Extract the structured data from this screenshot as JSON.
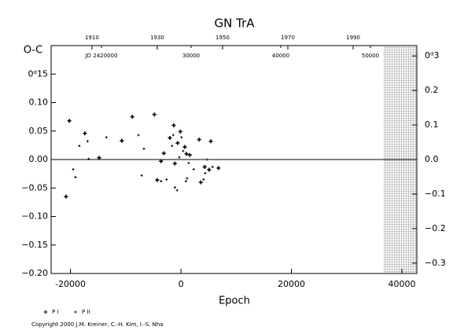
{
  "chart_data": {
    "type": "scatter",
    "title": "GN TrA",
    "x_label": "Epoch",
    "y_label": "O-C",
    "copyright": "Copyright 2000 J.M. Kreiner, C.-H. Kim, I.-S. Nha",
    "xlim": [
      -23500,
      42700
    ],
    "xticks": [
      -20000,
      0,
      20000,
      40000
    ],
    "ylim": [
      -0.2,
      0.2
    ],
    "yticks": [
      {
        "value": -0.2,
        "label": "−0.20"
      },
      {
        "value": -0.15,
        "label": "−0.15"
      },
      {
        "value": -0.1,
        "label": "−0.10"
      },
      {
        "value": -0.05,
        "label": "−0.05"
      },
      {
        "value": 0,
        "label": "0.00"
      },
      {
        "value": 0.05,
        "label": "0.05"
      },
      {
        "value": 0.1,
        "label": "0.10"
      },
      {
        "value": 0.15,
        "label": "0ᵈ15"
      }
    ],
    "y2lim": [
      -0.33,
      0.33
    ],
    "y2ticks": [
      {
        "value": -0.3,
        "label": "−0.3"
      },
      {
        "value": -0.2,
        "label": "−0.2"
      },
      {
        "value": -0.1,
        "label": "−0.1"
      },
      {
        "value": 0,
        "label": "0.0"
      },
      {
        "value": 0.1,
        "label": "0.1"
      },
      {
        "value": 0.2,
        "label": "0.2"
      },
      {
        "value": 0.3,
        "label": "0ᵈ3"
      }
    ],
    "year_lim": [
      1897.5,
      2009.5
    ],
    "year_ticks": [
      1910,
      1930,
      1950,
      1970,
      1990
    ],
    "jd_lim": [
      2414386,
      2455175
    ],
    "jd_ticks": [
      {
        "value": 2420000,
        "label": "JD 2420000"
      },
      {
        "value": 2430000,
        "label": "30000"
      },
      {
        "value": 2440000,
        "label": "40000"
      },
      {
        "value": 2450000,
        "label": "50000"
      }
    ],
    "hatched_xlim": [
      36600,
      42700
    ],
    "series": [
      {
        "name": "P I",
        "color": "#000000",
        "x": [
          -20200,
          -20800,
          -17400,
          -14800,
          -10700,
          -8800,
          -4800,
          -4300,
          -3600,
          -3100,
          -2000,
          -1300,
          -1100,
          -600,
          -100,
          700,
          1000,
          1600,
          3300,
          3600,
          4300,
          5100,
          5400,
          6800
        ],
        "values": [
          0.068,
          -0.065,
          0.046,
          0.003,
          0.033,
          0.075,
          0.079,
          -0.036,
          -0.003,
          0.011,
          0.038,
          0.06,
          -0.007,
          0.029,
          0.049,
          0.022,
          0.01,
          0.008,
          0.035,
          -0.04,
          -0.013,
          -0.018,
          0.032,
          -0.015
        ]
      },
      {
        "name": "P II",
        "color": "#000000",
        "x": [
          -19500,
          -19100,
          -18400,
          -16900,
          -16700,
          -13500,
          -7700,
          -6700,
          -7100,
          -3600,
          -2600,
          -1400,
          -1600,
          -1100,
          -700,
          -300,
          100,
          400,
          900,
          1100,
          1400,
          2300,
          4100,
          4400,
          4700,
          5700
        ],
        "values": [
          -0.017,
          -0.031,
          0.024,
          0.032,
          0.001,
          0.039,
          0.043,
          0.019,
          -0.028,
          -0.038,
          -0.035,
          0.043,
          0.024,
          -0.049,
          -0.054,
          0.004,
          0.039,
          0.015,
          -0.038,
          -0.033,
          -0.006,
          -0.017,
          -0.035,
          -0.024,
          0.0,
          -0.013
        ]
      }
    ]
  }
}
